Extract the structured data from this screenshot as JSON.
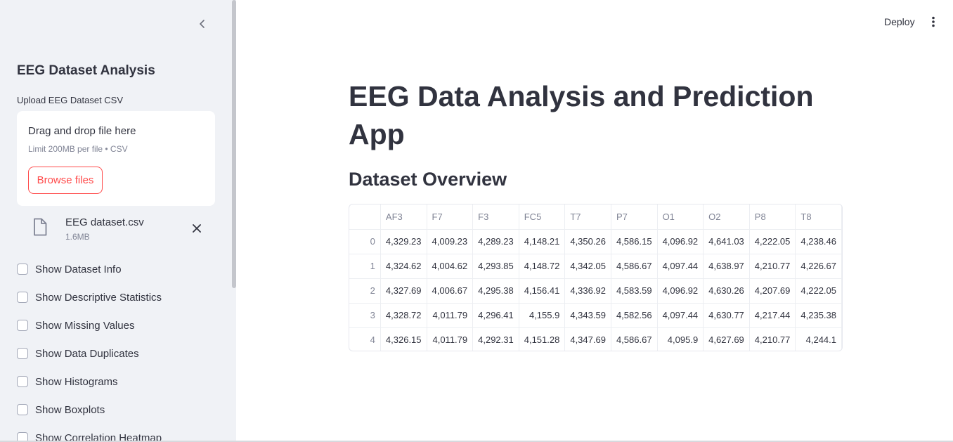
{
  "header": {
    "deploy_label": "Deploy",
    "menu_icon": "vertical-ellipsis-icon"
  },
  "sidebar": {
    "title": "EEG Dataset Analysis",
    "upload": {
      "label": "Upload EEG Dataset CSV",
      "drop_text": "Drag and drop file here",
      "limit_text": "Limit 200MB per file • CSV",
      "browse_label": "Browse files"
    },
    "file": {
      "name": "EEG dataset.csv",
      "size": "1.6MB"
    },
    "checkboxes": [
      {
        "label": "Show Dataset Info",
        "checked": false
      },
      {
        "label": "Show Descriptive Statistics",
        "checked": false
      },
      {
        "label": "Show Missing Values",
        "checked": false
      },
      {
        "label": "Show Data Duplicates",
        "checked": false
      },
      {
        "label": "Show Histograms",
        "checked": false
      },
      {
        "label": "Show Boxplots",
        "checked": false
      },
      {
        "label": "Show Correlation Heatmap",
        "checked": false
      }
    ]
  },
  "main": {
    "title": "EEG Data Analysis and Prediction App",
    "section_title": "Dataset Overview",
    "table": {
      "columns": [
        "AF3",
        "F7",
        "F3",
        "FC5",
        "T7",
        "P7",
        "O1",
        "O2",
        "P8",
        "T8"
      ],
      "rows": [
        {
          "index": "0",
          "values": [
            "4,329.23",
            "4,009.23",
            "4,289.23",
            "4,148.21",
            "4,350.26",
            "4,586.15",
            "4,096.92",
            "4,641.03",
            "4,222.05",
            "4,238.46"
          ]
        },
        {
          "index": "1",
          "values": [
            "4,324.62",
            "4,004.62",
            "4,293.85",
            "4,148.72",
            "4,342.05",
            "4,586.67",
            "4,097.44",
            "4,638.97",
            "4,210.77",
            "4,226.67"
          ]
        },
        {
          "index": "2",
          "values": [
            "4,327.69",
            "4,006.67",
            "4,295.38",
            "4,156.41",
            "4,336.92",
            "4,583.59",
            "4,096.92",
            "4,630.26",
            "4,207.69",
            "4,222.05"
          ]
        },
        {
          "index": "3",
          "values": [
            "4,328.72",
            "4,011.79",
            "4,296.41",
            "4,155.9",
            "4,343.59",
            "4,582.56",
            "4,097.44",
            "4,630.77",
            "4,217.44",
            "4,235.38"
          ]
        },
        {
          "index": "4",
          "values": [
            "4,326.15",
            "4,011.79",
            "4,292.31",
            "4,151.28",
            "4,347.69",
            "4,586.67",
            "4,095.9",
            "4,627.69",
            "4,210.77",
            "4,244.1"
          ]
        }
      ]
    }
  },
  "colors": {
    "sidebar_bg": "#f0f2f6",
    "accent": "#ff4b4b",
    "text": "#31333f",
    "muted": "#808495"
  }
}
